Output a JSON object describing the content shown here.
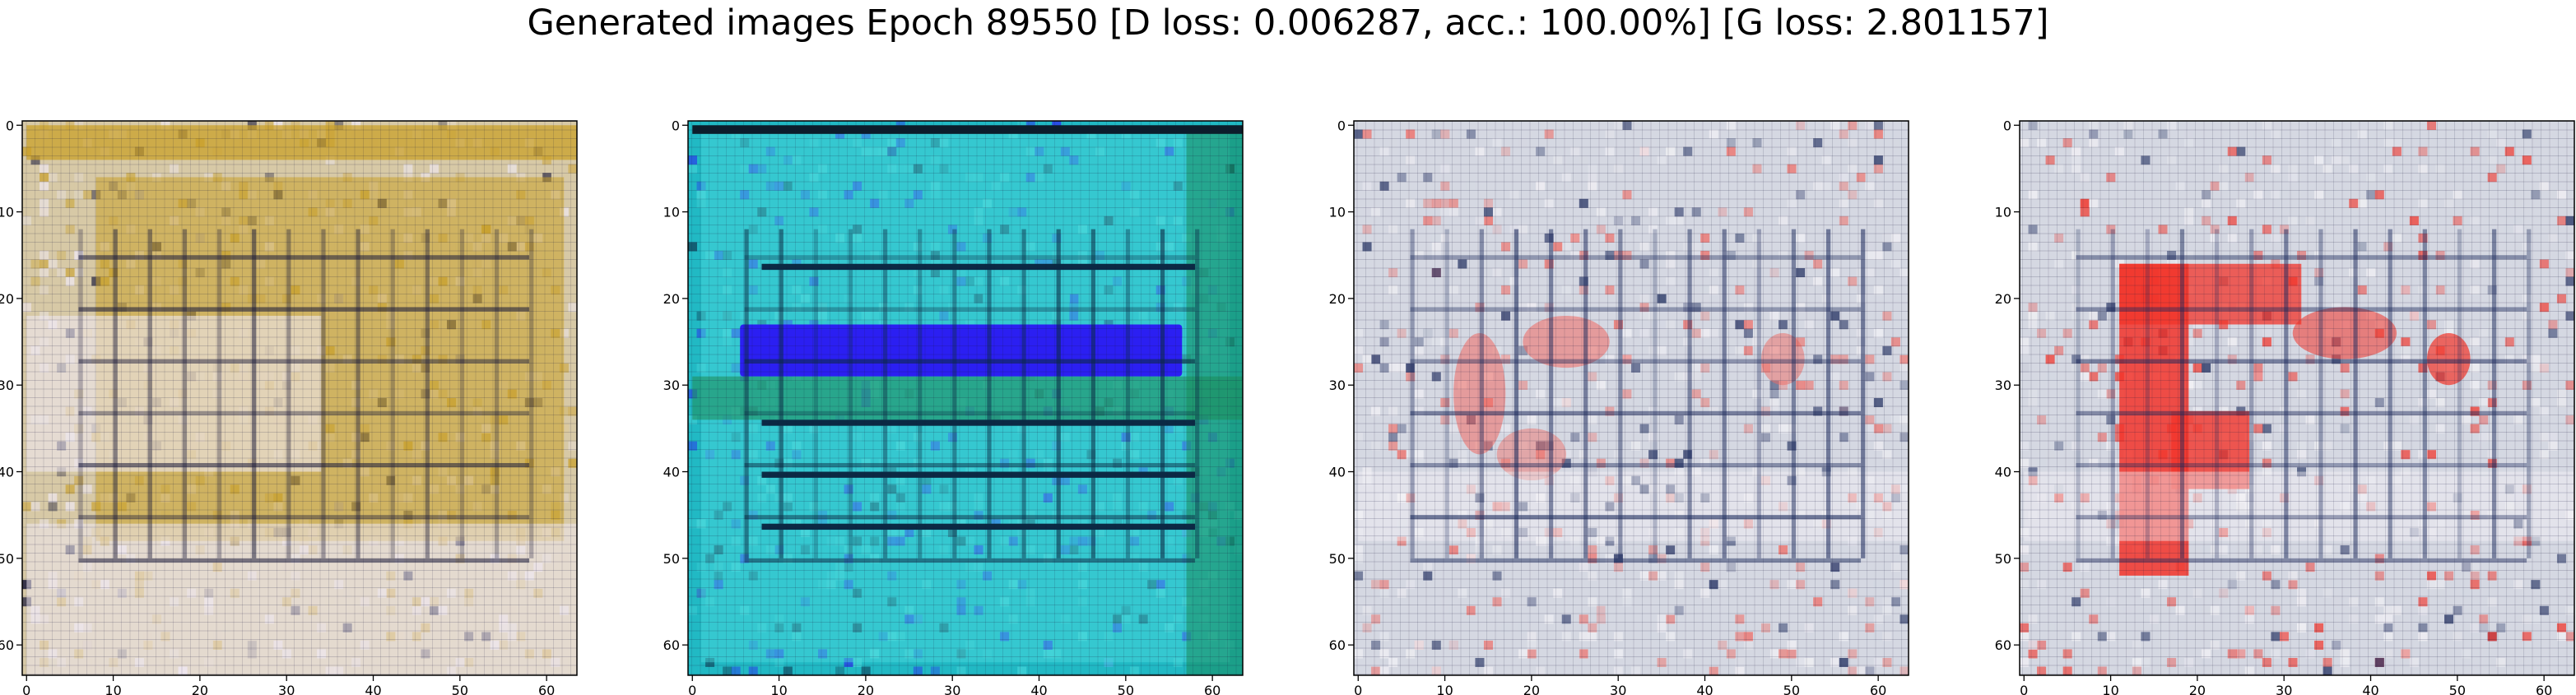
{
  "figure": {
    "title": "Generated images Epoch 89550 [D loss: 0.006287, acc.: 100.00%] [G loss: 2.801157]"
  },
  "chart_data": [
    {
      "type": "heatmap",
      "description_tag": "generated-image-1",
      "xlim": [
        -0.5,
        63.5
      ],
      "ylim": [
        63.5,
        -0.5
      ],
      "xticks": [
        0,
        10,
        20,
        30,
        40,
        50,
        60
      ],
      "yticks": [
        0,
        10,
        20,
        30,
        40,
        50,
        60
      ],
      "palette": {
        "base": "#d7c9a6",
        "accent": "#c9a02a",
        "dark": "#1a1a3a",
        "light": "#efe8f0"
      }
    },
    {
      "type": "heatmap",
      "description_tag": "generated-image-2",
      "xlim": [
        -0.5,
        63.5
      ],
      "ylim": [
        63.5,
        -0.5
      ],
      "xticks": [
        0,
        10,
        20,
        30,
        40,
        50,
        60
      ],
      "yticks": [
        0,
        10,
        20,
        30,
        40,
        50,
        60
      ],
      "palette": {
        "base": "#21b9c4",
        "accent": "#2b1ff2",
        "dark": "#0b2a44",
        "light": "#49d8db"
      }
    },
    {
      "type": "heatmap",
      "description_tag": "generated-image-3",
      "xlim": [
        -0.5,
        63.5
      ],
      "ylim": [
        63.5,
        -0.5
      ],
      "xticks": [
        0,
        10,
        20,
        30,
        40,
        50,
        60
      ],
      "yticks": [
        0,
        10,
        20,
        30,
        40,
        50,
        60
      ],
      "palette": {
        "base": "#d5d8e2",
        "accent": "#f06a62",
        "dark": "#1c2a5c",
        "light": "#f3f2f6"
      }
    },
    {
      "type": "heatmap",
      "description_tag": "generated-image-4",
      "xlim": [
        -0.5,
        63.5
      ],
      "ylim": [
        63.5,
        -0.5
      ],
      "xticks": [
        0,
        10,
        20,
        30,
        40,
        50,
        60
      ],
      "yticks": [
        0,
        10,
        20,
        30,
        40,
        50,
        60
      ],
      "palette": {
        "base": "#d5d8e2",
        "accent": "#f2342a",
        "dark": "#1c2a5c",
        "light": "#f3f2f6"
      }
    }
  ]
}
